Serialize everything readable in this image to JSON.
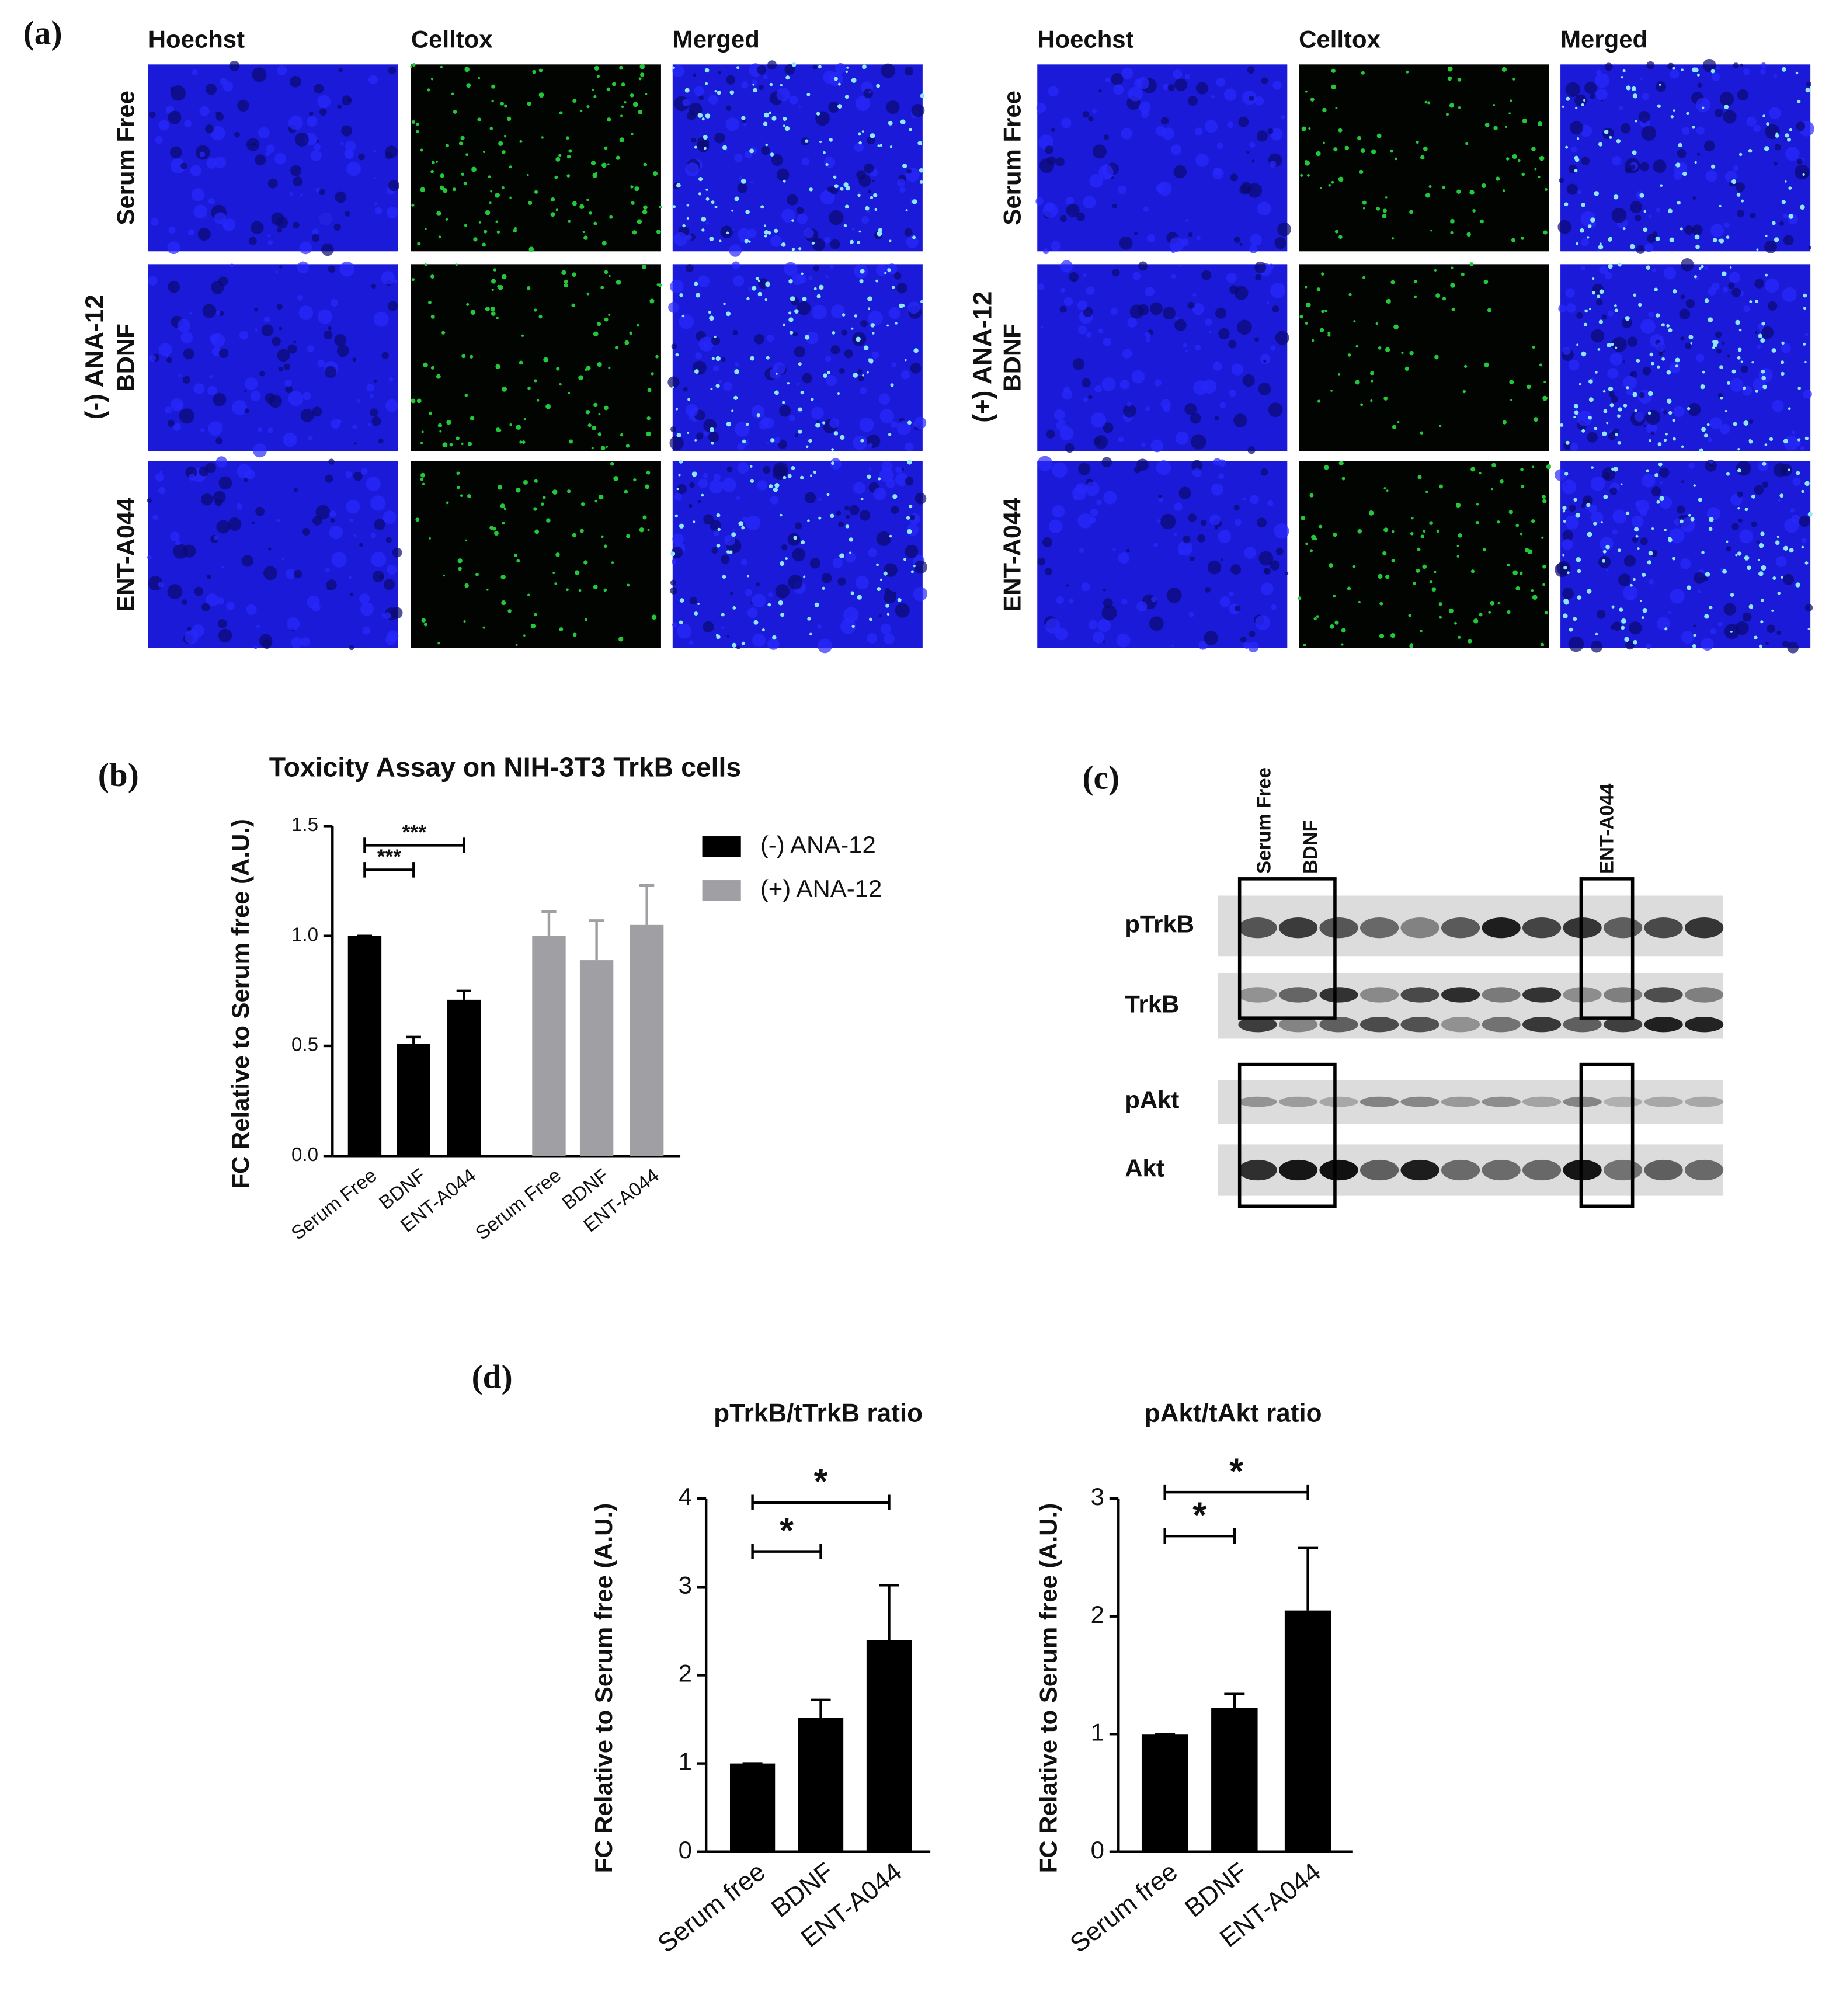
{
  "panel_a": {
    "label": "(a)",
    "groups": [
      {
        "name": "(-) ANA-12",
        "columns": [
          "Hoechst",
          "Celltox",
          "Merged"
        ],
        "rows": [
          "Serum Free",
          "BDNF",
          "ENT-A044"
        ]
      },
      {
        "name": "(+) ANA-12",
        "columns": [
          "Hoechst",
          "Celltox",
          "Merged"
        ],
        "rows": [
          "Serum Free",
          "BDNF",
          "ENT-A044"
        ]
      }
    ]
  },
  "panel_c": {
    "label": "(c)",
    "lanes": [
      "Serum Free",
      "BDNF",
      "ENT-A044"
    ],
    "blots": [
      "pTrkB",
      "TrkB",
      "pAkt",
      "Akt"
    ]
  },
  "labels": {
    "b": "(b)",
    "d": "(d)"
  },
  "chart_data": [
    {
      "type": "bar",
      "title": "Toxicity Assay on NIH-3T3 TrkB cells",
      "y_label": "FC Relative to Serum free (A.U.)",
      "categories": [
        "Serum Free",
        "BDNF",
        "ENT-A044"
      ],
      "series": [
        {
          "name": "(-) ANA-12",
          "color": "#000000",
          "values": [
            1.0,
            0.51,
            0.71
          ],
          "errors": [
            0,
            0.03,
            0.04
          ]
        },
        {
          "name": "(+) ANA-12",
          "color": "#a0a0a4",
          "values": [
            1.0,
            0.89,
            1.05
          ],
          "errors": [
            0.11,
            0.18,
            0.18
          ]
        }
      ],
      "ylim": [
        0,
        1.5
      ],
      "yticks": [
        {
          "value": 0,
          "label": "0.0"
        },
        {
          "value": 0.5,
          "label": "0.5"
        },
        {
          "value": 1,
          "label": "1.0"
        },
        {
          "value": 1.5,
          "label": "1.5"
        }
      ],
      "legend": "right",
      "significance": [
        "***",
        "***"
      ]
    },
    {
      "type": "bar",
      "title": "pTrkB/tTrkB ratio",
      "y_label": "FC Relative to Serum free (A.U.)",
      "categories": [
        "Serum free",
        "BDNF",
        "ENT-A044"
      ],
      "series": [
        {
          "color": "#000000",
          "values": [
            1.0,
            1.52,
            2.4
          ],
          "errors": [
            0,
            0.2,
            0.62
          ]
        }
      ],
      "ylim": [
        0,
        4
      ],
      "yticks": [
        0,
        1,
        2,
        3,
        4
      ],
      "significance": [
        "*",
        "*"
      ]
    },
    {
      "type": "bar",
      "title": "pAkt/tAkt ratio",
      "y_label": "FC Relative to Serum free (A.U.)",
      "categories": [
        "Serum free",
        "BDNF",
        "ENT-A044"
      ],
      "series": [
        {
          "color": "#000000",
          "values": [
            1.0,
            1.22,
            2.05
          ],
          "errors": [
            0,
            0.12,
            0.53
          ]
        }
      ],
      "ylim": [
        0,
        3
      ],
      "yticks": [
        0,
        1,
        2,
        3
      ],
      "significance": [
        "*",
        "*"
      ]
    }
  ]
}
